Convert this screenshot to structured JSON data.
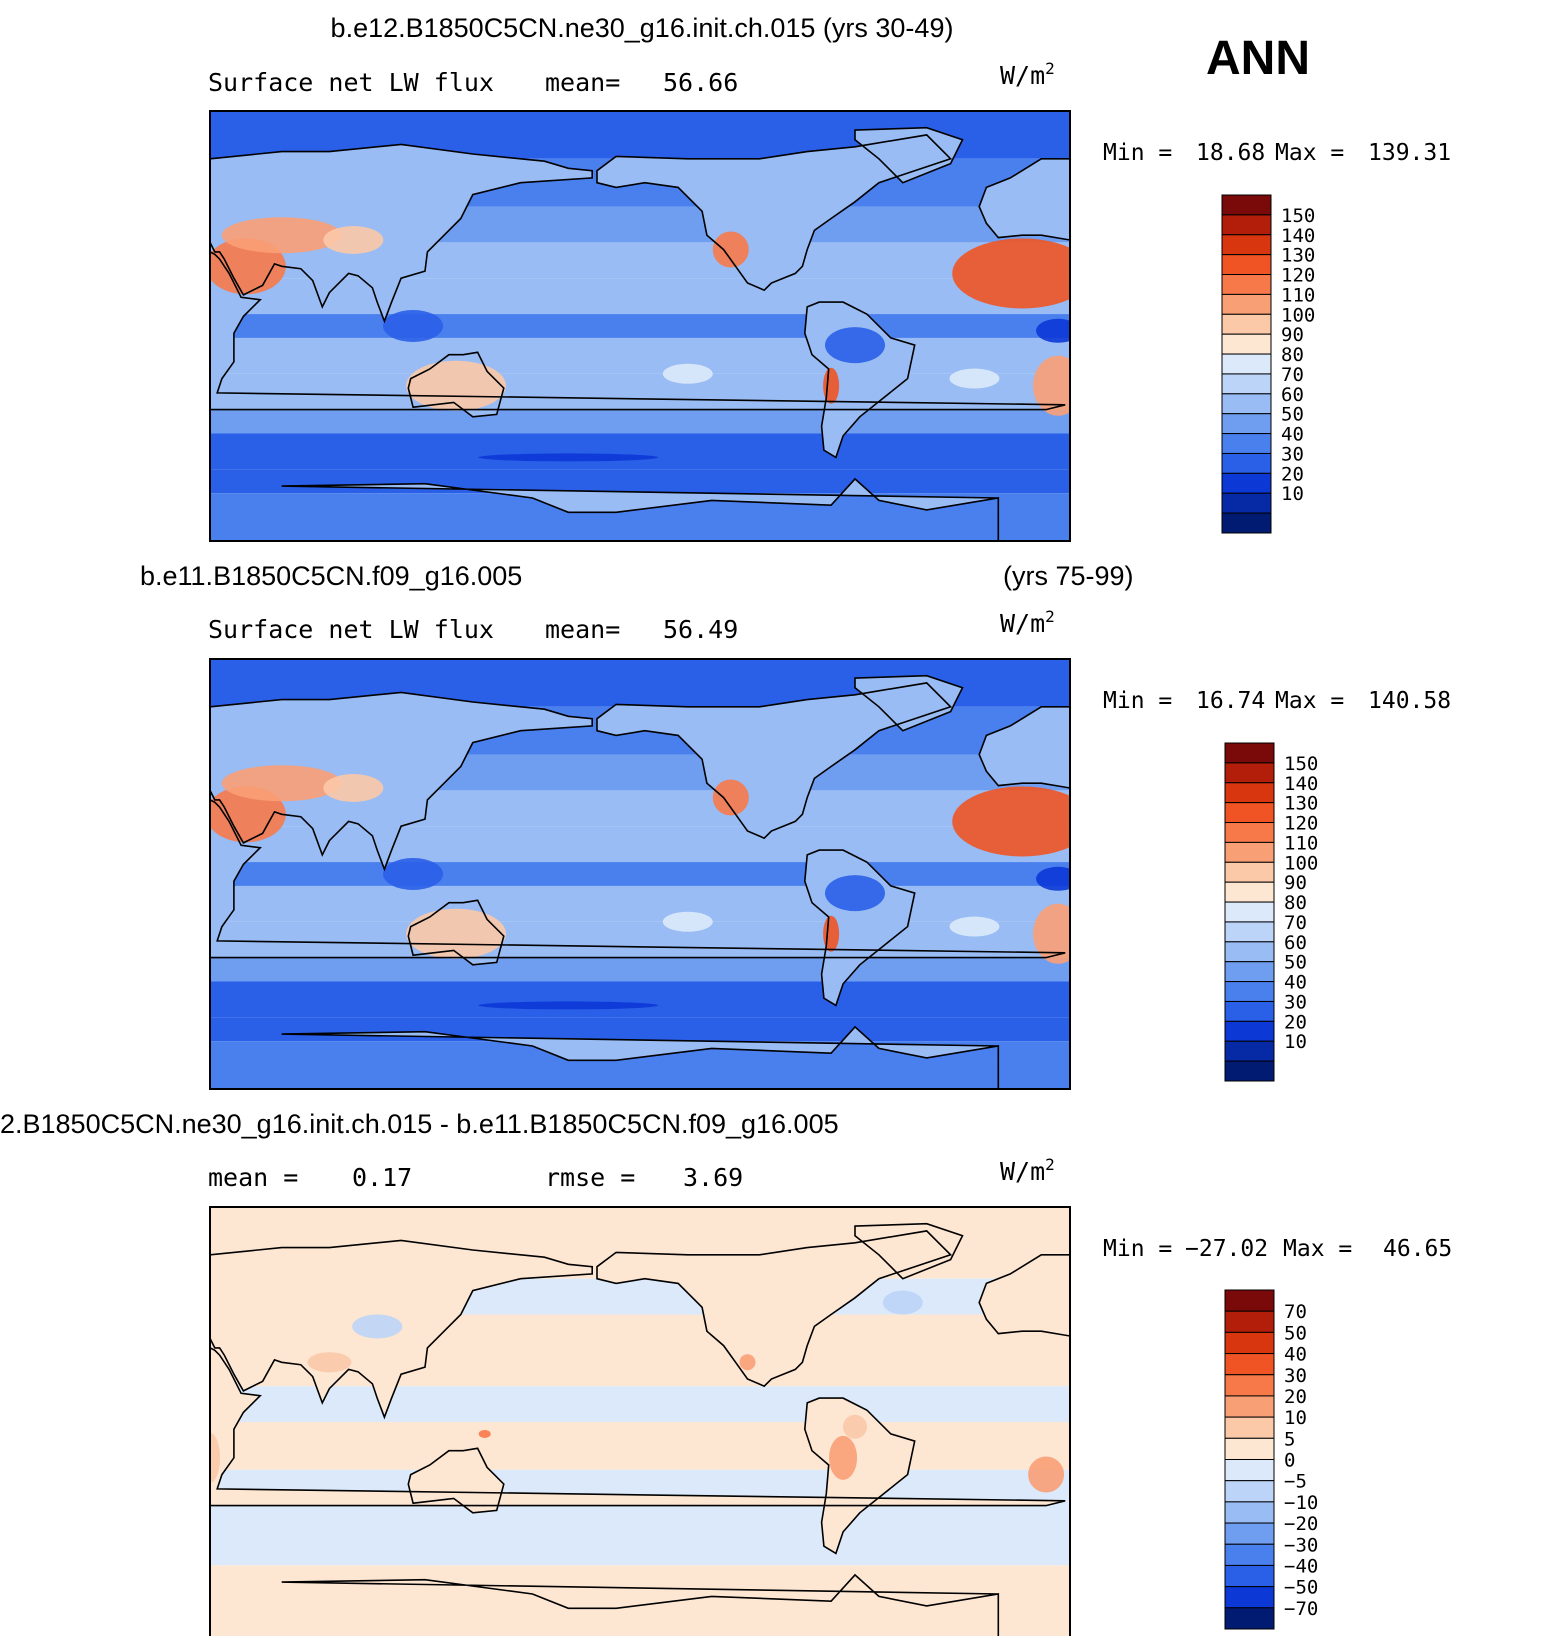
{
  "season_label": "ANN",
  "panels": [
    {
      "title": "b.e12.B1850C5CN.ne30_g16.init.ch.015 (yrs 30-49)",
      "title_right": "",
      "left_label": "Surface net LW flux",
      "mid_label": "mean=",
      "mid_value": "56.66",
      "units": "W/m",
      "units_sup": "2",
      "min_label": "Min =",
      "min_value": "18.68",
      "max_label": "Max =",
      "max_value": "139.31",
      "colorbar": {
        "labels": [
          "150",
          "140",
          "130",
          "120",
          "110",
          "100",
          "90",
          "80",
          "70",
          "60",
          "50",
          "40",
          "30",
          "20",
          "10"
        ],
        "colors": [
          "#7a0a0a",
          "#b31e0a",
          "#d8360f",
          "#f05424",
          "#f7794a",
          "#f99f76",
          "#fbc8a8",
          "#fde6d2",
          "#dbe9fb",
          "#bcd4f7",
          "#98bcf3",
          "#6f9ef0",
          "#4a7fee",
          "#2a5fe8",
          "#0c38d6",
          "#062aa6",
          "#021b72"
        ]
      }
    },
    {
      "title": "b.e11.B1850C5CN.f09_g16.005",
      "title_right": "(yrs 75-99)",
      "left_label": "Surface net LW flux",
      "mid_label": "mean=",
      "mid_value": "56.49",
      "units": "W/m",
      "units_sup": "2",
      "min_label": "Min =",
      "min_value": "16.74",
      "max_label": "Max =",
      "max_value": "140.58",
      "colorbar": {
        "labels": [
          "150",
          "140",
          "130",
          "120",
          "110",
          "100",
          "90",
          "80",
          "70",
          "60",
          "50",
          "40",
          "30",
          "20",
          "10"
        ],
        "colors": [
          "#7a0a0a",
          "#b31e0a",
          "#d8360f",
          "#f05424",
          "#f7794a",
          "#f99f76",
          "#fbc8a8",
          "#fde6d2",
          "#dbe9fb",
          "#bcd4f7",
          "#98bcf3",
          "#6f9ef0",
          "#4a7fee",
          "#2a5fe8",
          "#0c38d6",
          "#062aa6",
          "#021b72"
        ]
      }
    },
    {
      "title": "2.B1850C5CN.ne30_g16.init.ch.015 - b.e11.B1850C5CN.f09_g16.005",
      "title_right": "",
      "left_label": "mean =",
      "left_value": "0.17",
      "mid_label": "rmse =",
      "mid_value": "3.69",
      "units": "W/m",
      "units_sup": "2",
      "min_label": "Min =",
      "min_value": "−27.02",
      "max_label": "Max =",
      "max_value": "46.65",
      "colorbar": {
        "labels": [
          "70",
          "50",
          "40",
          "30",
          "20",
          "10",
          "5",
          "0",
          "−5",
          "−10",
          "−20",
          "−30",
          "−40",
          "−50",
          "−70"
        ],
        "colors": [
          "#7a0a0a",
          "#b31e0a",
          "#d8360f",
          "#f05424",
          "#f7794a",
          "#f99f76",
          "#fbc8a8",
          "#fde6d2",
          "#dbe9fb",
          "#bcd4f7",
          "#98bcf3",
          "#6f9ef0",
          "#4a7fee",
          "#2a5fe8",
          "#0c38d6",
          "#021b72"
        ]
      }
    }
  ],
  "chart_data": [
    {
      "type": "heatmap",
      "title": "b.e12.B1850C5CN.ne30_g16.init.ch.015 (yrs 30-49)",
      "variable": "Surface net LW flux",
      "units": "W/m2",
      "mean": 56.66,
      "min": 18.68,
      "max": 139.31,
      "levels": [
        10,
        20,
        30,
        40,
        50,
        60,
        70,
        80,
        90,
        100,
        110,
        120,
        130,
        140,
        150
      ],
      "projection": "global cylindrical equidistant, Pacific-centered"
    },
    {
      "type": "heatmap",
      "title": "b.e11.B1850C5CN.f09_g16.005 (yrs 75-99)",
      "variable": "Surface net LW flux",
      "units": "W/m2",
      "mean": 56.49,
      "min": 16.74,
      "max": 140.58,
      "levels": [
        10,
        20,
        30,
        40,
        50,
        60,
        70,
        80,
        90,
        100,
        110,
        120,
        130,
        140,
        150
      ],
      "projection": "global cylindrical equidistant, Pacific-centered"
    },
    {
      "type": "heatmap",
      "title": "2.B1850C5CN.ne30_g16.init.ch.015 - b.e11.B1850C5CN.f09_g16.005",
      "units": "W/m2",
      "mean": 0.17,
      "rmse": 3.69,
      "min": -27.02,
      "max": 46.65,
      "levels": [
        -70,
        -50,
        -40,
        -30,
        -20,
        -10,
        -5,
        0,
        5,
        10,
        20,
        30,
        40,
        50,
        70
      ],
      "projection": "global cylindrical equidistant, Pacific-centered"
    }
  ]
}
